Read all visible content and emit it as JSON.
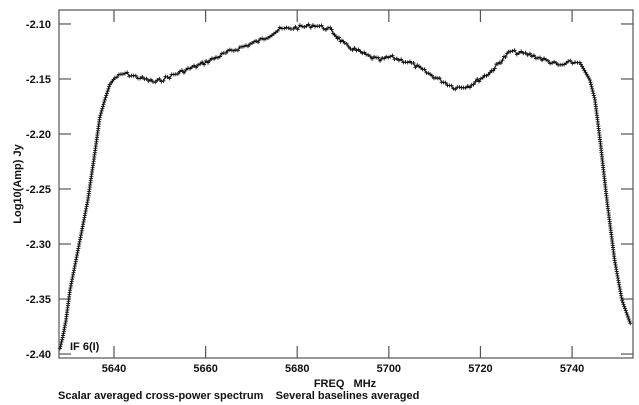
{
  "chart_data": {
    "type": "line",
    "title": "",
    "xlabel": "FREQ   MHz",
    "ylabel": "Log10(Amp) Jy",
    "caption": "Scalar averaged cross-power spectrum    Several baselines averaged",
    "annotation": "IF 6(I)",
    "xlim": [
      5628.0,
      5753.3
    ],
    "ylim": [
      -2.4036,
      -2.0873
    ],
    "x_ticks": [
      5640,
      5660,
      5680,
      5700,
      5720,
      5740
    ],
    "x_tick_labels": [
      "5640",
      "5660",
      "5680",
      "5700",
      "5720",
      "5740"
    ],
    "y_ticks": [
      -2.1,
      -2.15,
      -2.2,
      -2.25,
      -2.3,
      -2.35,
      -2.4
    ],
    "y_tick_labels": [
      "-2.10",
      "-2.15",
      "-2.20",
      "-2.25",
      "-2.30",
      "-2.35",
      "-2.40"
    ],
    "grid": false,
    "marker": "plus",
    "series": [
      {
        "name": "IF 6(I)",
        "x": [
          5628.2,
          5628.8,
          5629.5,
          5630.4,
          5632.6,
          5634.3,
          5635.9,
          5636.9,
          5638.0,
          5639.1,
          5640.2,
          5642.4,
          5649.0,
          5654.4,
          5658.8,
          5665.3,
          5671.9,
          5676.2,
          5680.6,
          5683.9,
          5687.2,
          5690.4,
          5695.9,
          5698.1,
          5700.3,
          5704.6,
          5709.0,
          5714.5,
          5717.7,
          5722.1,
          5726.5,
          5730.8,
          5733.0,
          5737.4,
          5739.6,
          5741.7,
          5743.9,
          5745.0,
          5746.1,
          5747.6,
          5749.3,
          5750.9,
          5752.7
        ],
        "y": [
          -2.395,
          -2.385,
          -2.37,
          -2.342,
          -2.296,
          -2.26,
          -2.215,
          -2.185,
          -2.169,
          -2.155,
          -2.149,
          -2.145,
          -2.153,
          -2.144,
          -2.137,
          -2.125,
          -2.115,
          -2.105,
          -2.103,
          -2.101,
          -2.105,
          -2.119,
          -2.13,
          -2.133,
          -2.13,
          -2.135,
          -2.146,
          -2.158,
          -2.156,
          -2.144,
          -2.125,
          -2.128,
          -2.131,
          -2.138,
          -2.135,
          -2.135,
          -2.151,
          -2.169,
          -2.205,
          -2.26,
          -2.315,
          -2.351,
          -2.372
        ]
      }
    ],
    "edge_segments": [
      {
        "x": 5628.0,
        "y": [
          -2.3,
          -2.37
        ]
      },
      {
        "x": 5753.3,
        "y": [
          -2.282,
          -2.376
        ]
      }
    ]
  }
}
